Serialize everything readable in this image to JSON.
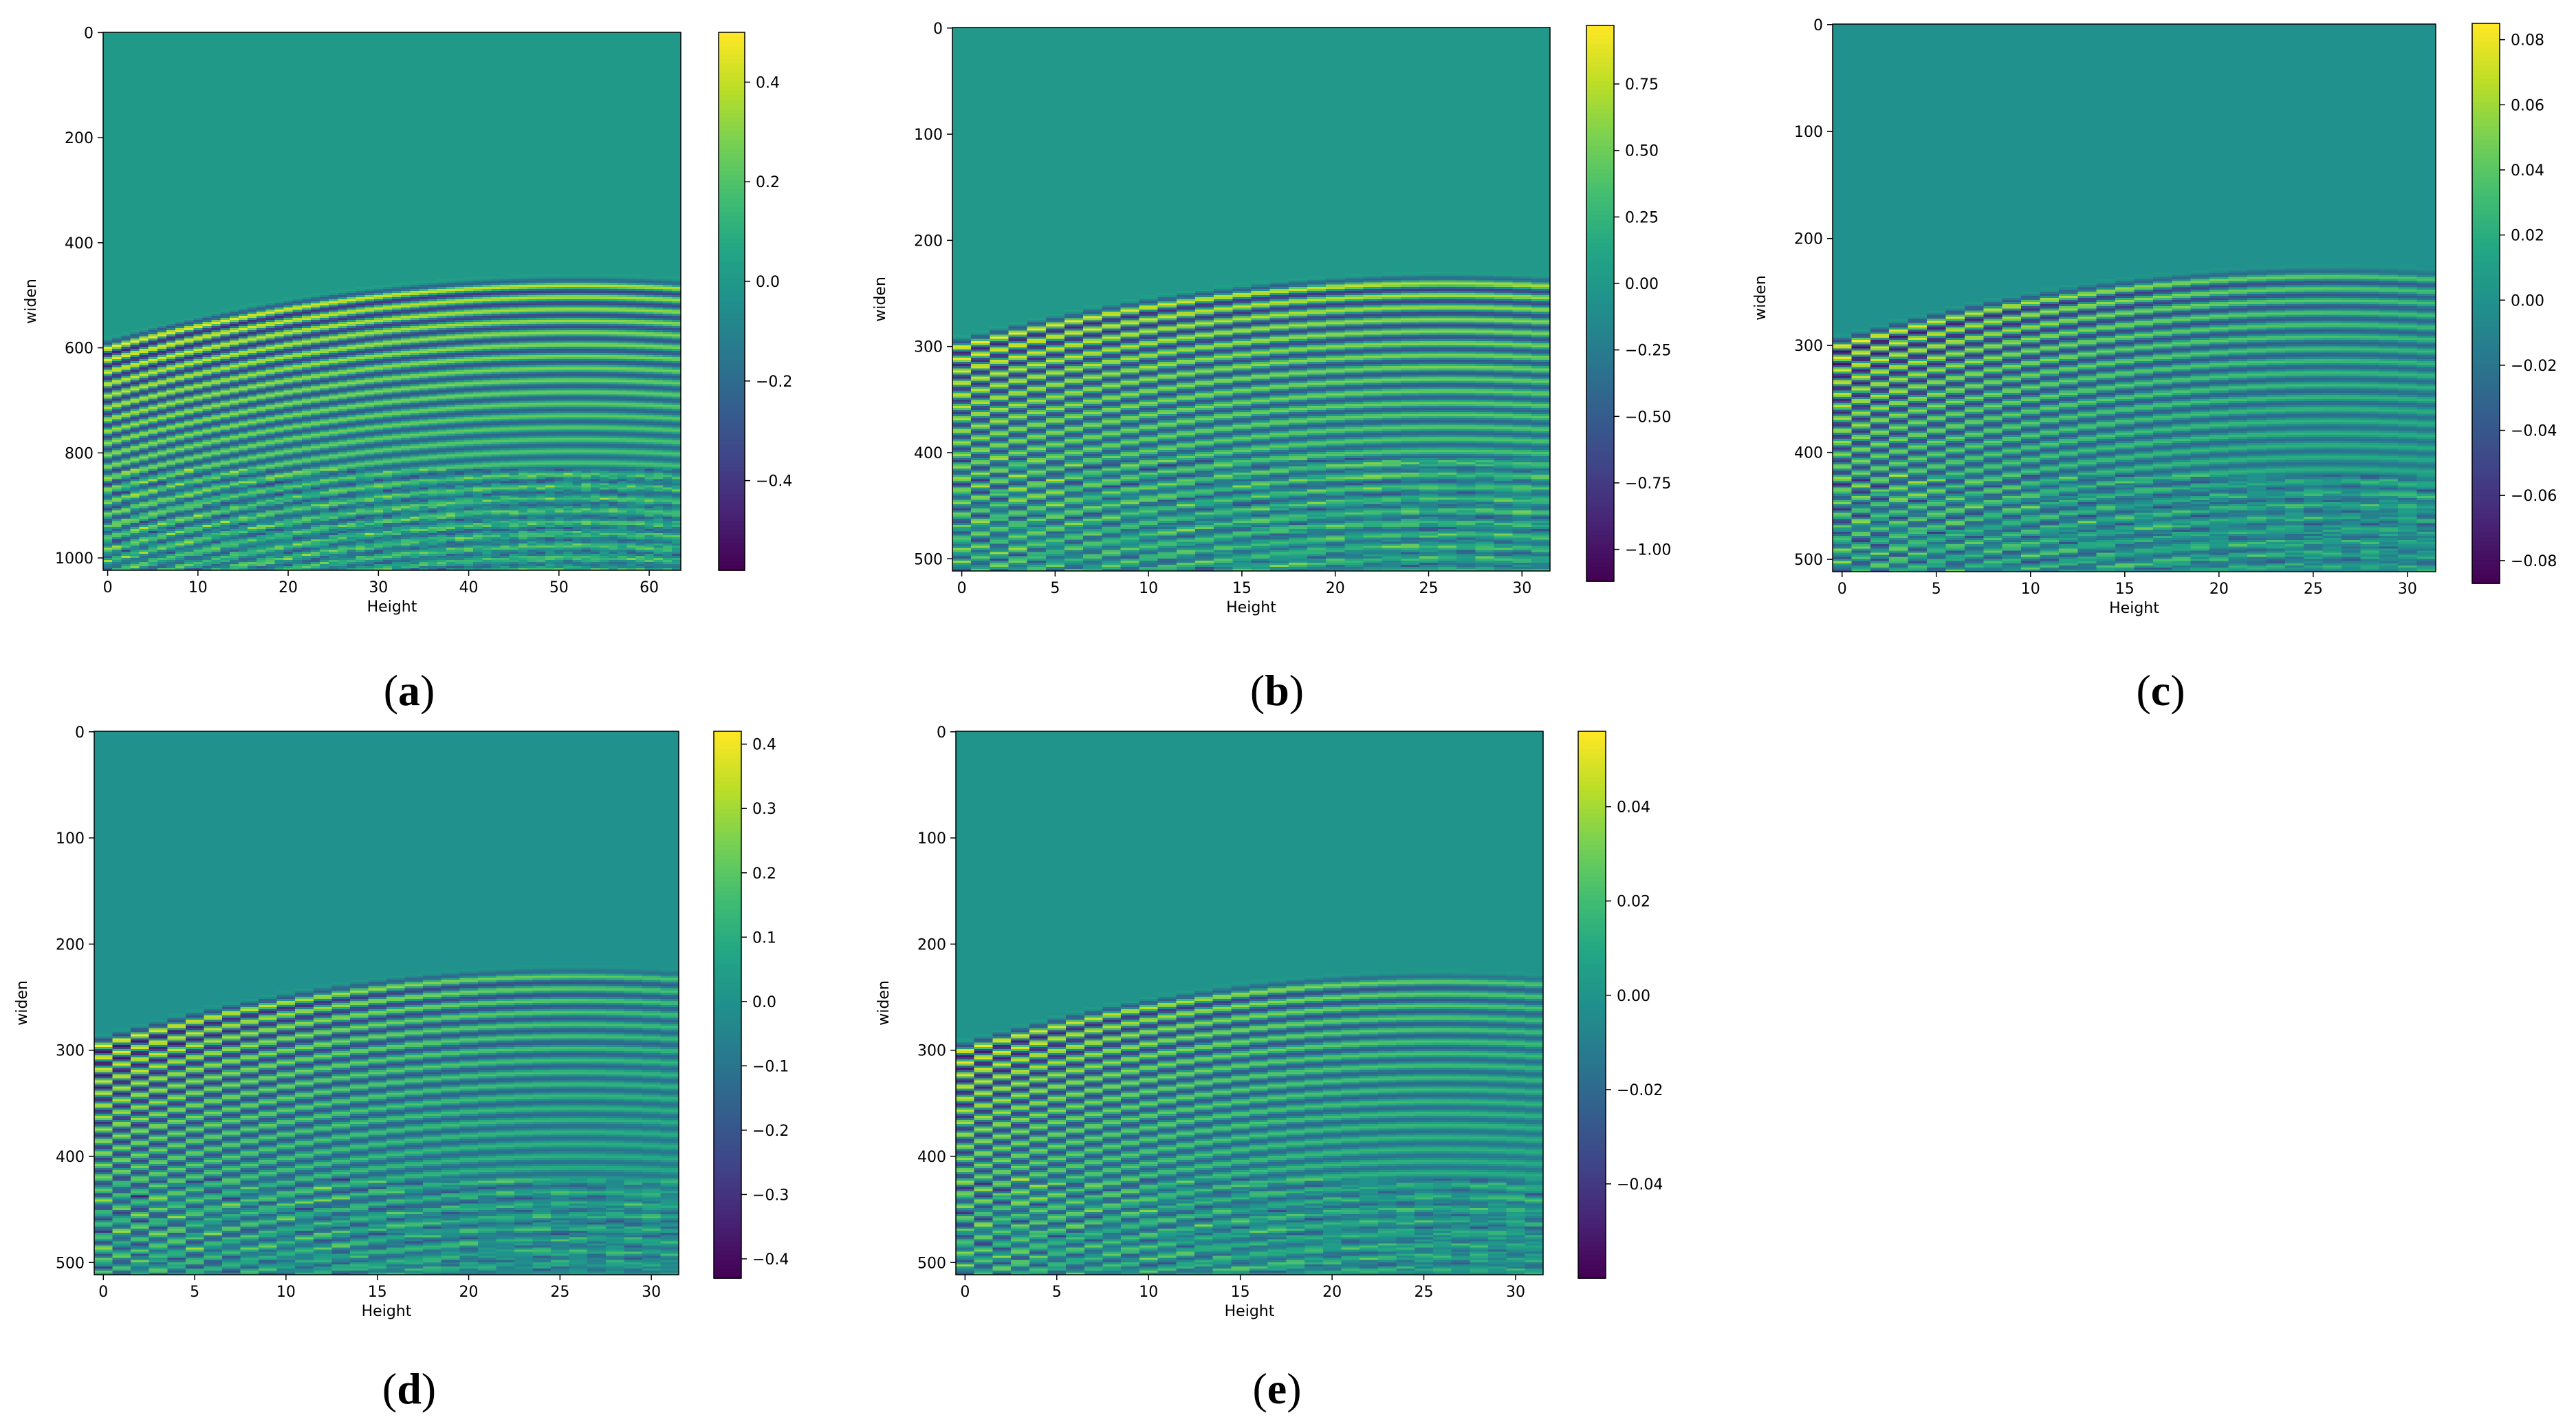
{
  "chart_data": [
    {
      "type": "heatmap",
      "panel_label": "a",
      "xlabel": "Height",
      "ylabel": "widen",
      "xlim": [
        -0.5,
        63.5
      ],
      "ylim": [
        1023.5,
        -0.5
      ],
      "xticks": [
        0,
        10,
        20,
        30,
        40,
        50,
        60
      ],
      "yticks": [
        0,
        200,
        400,
        600,
        800,
        1000
      ],
      "colorbar": {
        "range": [
          -0.58,
          0.5
        ],
        "ticks": [
          "0.4",
          "0.2",
          "0.0",
          "−0.2",
          "−0.4"
        ],
        "tick_values": [
          0.4,
          0.2,
          0.0,
          -0.2,
          -0.4
        ]
      },
      "pattern": {
        "arrival_left": 600,
        "arrival_peak": 480,
        "peak_x": 52,
        "amplitude": 0.5,
        "event_band_end": 820,
        "noise_start": 830
      }
    },
    {
      "type": "heatmap",
      "panel_label": "b",
      "xlabel": "Height",
      "ylabel": "widen",
      "xlim": [
        -0.5,
        31.5
      ],
      "ylim": [
        511.5,
        -0.5
      ],
      "xticks": [
        0,
        5,
        10,
        15,
        20,
        25,
        30
      ],
      "yticks": [
        0,
        100,
        200,
        300,
        400,
        500
      ],
      "colorbar": {
        "range": [
          -1.12,
          0.97
        ],
        "ticks": [
          "0.75",
          "0.50",
          "0.25",
          "0.00",
          "−0.25",
          "−0.50",
          "−0.75",
          "−1.00"
        ],
        "tick_values": [
          0.75,
          0.5,
          0.25,
          0.0,
          -0.25,
          -0.5,
          -0.75,
          -1.0
        ]
      },
      "pattern": {
        "arrival_left": 300,
        "arrival_peak": 240,
        "peak_x": 26,
        "amplitude": 0.97,
        "event_band_end": 400,
        "noise_start": 405
      }
    },
    {
      "type": "heatmap",
      "panel_label": "c",
      "xlabel": "Height",
      "ylabel": "widen",
      "xlim": [
        -0.5,
        31.5
      ],
      "ylim": [
        511.5,
        -0.5
      ],
      "xticks": [
        0,
        5,
        10,
        15,
        20,
        25,
        30
      ],
      "yticks": [
        0,
        100,
        200,
        300,
        400,
        500
      ],
      "colorbar": {
        "range": [
          -0.087,
          0.085
        ],
        "ticks": [
          "0.08",
          "0.06",
          "0.04",
          "0.02",
          "0.00",
          "−0.02",
          "−0.04",
          "−0.06",
          "−0.08"
        ],
        "tick_values": [
          0.08,
          0.06,
          0.04,
          0.02,
          0.0,
          -0.02,
          -0.04,
          -0.06,
          -0.08
        ]
      },
      "pattern": {
        "arrival_left": 300,
        "arrival_peak": 235,
        "peak_x": 26,
        "amplitude": 0.085,
        "event_band_end": 430,
        "noise_start": 420
      }
    },
    {
      "type": "heatmap",
      "panel_label": "d",
      "xlabel": "Height",
      "ylabel": "widen",
      "xlim": [
        -0.5,
        31.5
      ],
      "ylim": [
        511.5,
        -0.5
      ],
      "xticks": [
        0,
        5,
        10,
        15,
        20,
        25,
        30
      ],
      "yticks": [
        0,
        100,
        200,
        300,
        400,
        500
      ],
      "colorbar": {
        "range": [
          -0.43,
          0.42
        ],
        "ticks": [
          "0.4",
          "0.3",
          "0.2",
          "0.1",
          "0.0",
          "−0.1",
          "−0.2",
          "−0.3",
          "−0.4"
        ],
        "tick_values": [
          0.4,
          0.3,
          0.2,
          0.1,
          0.0,
          -0.1,
          -0.2,
          -0.3,
          -0.4
        ]
      },
      "pattern": {
        "arrival_left": 295,
        "arrival_peak": 230,
        "peak_x": 26,
        "amplitude": 0.42,
        "event_band_end": 420,
        "noise_start": 420
      }
    },
    {
      "type": "heatmap",
      "panel_label": "e",
      "xlabel": "Height",
      "ylabel": "widen",
      "xlim": [
        -0.5,
        31.5
      ],
      "ylim": [
        511.5,
        -0.5
      ],
      "xticks": [
        0,
        5,
        10,
        15,
        20,
        25,
        30
      ],
      "yticks": [
        0,
        100,
        200,
        300,
        400,
        500
      ],
      "colorbar": {
        "range": [
          -0.06,
          0.056
        ],
        "ticks": [
          "0.04",
          "0.02",
          "0.00",
          "−0.02",
          "−0.04"
        ],
        "tick_values": [
          0.04,
          0.02,
          0.0,
          -0.02,
          -0.04
        ]
      },
      "pattern": {
        "arrival_left": 300,
        "arrival_peak": 235,
        "peak_x": 26,
        "amplitude": 0.056,
        "event_band_end": 420,
        "noise_start": 420
      }
    }
  ]
}
